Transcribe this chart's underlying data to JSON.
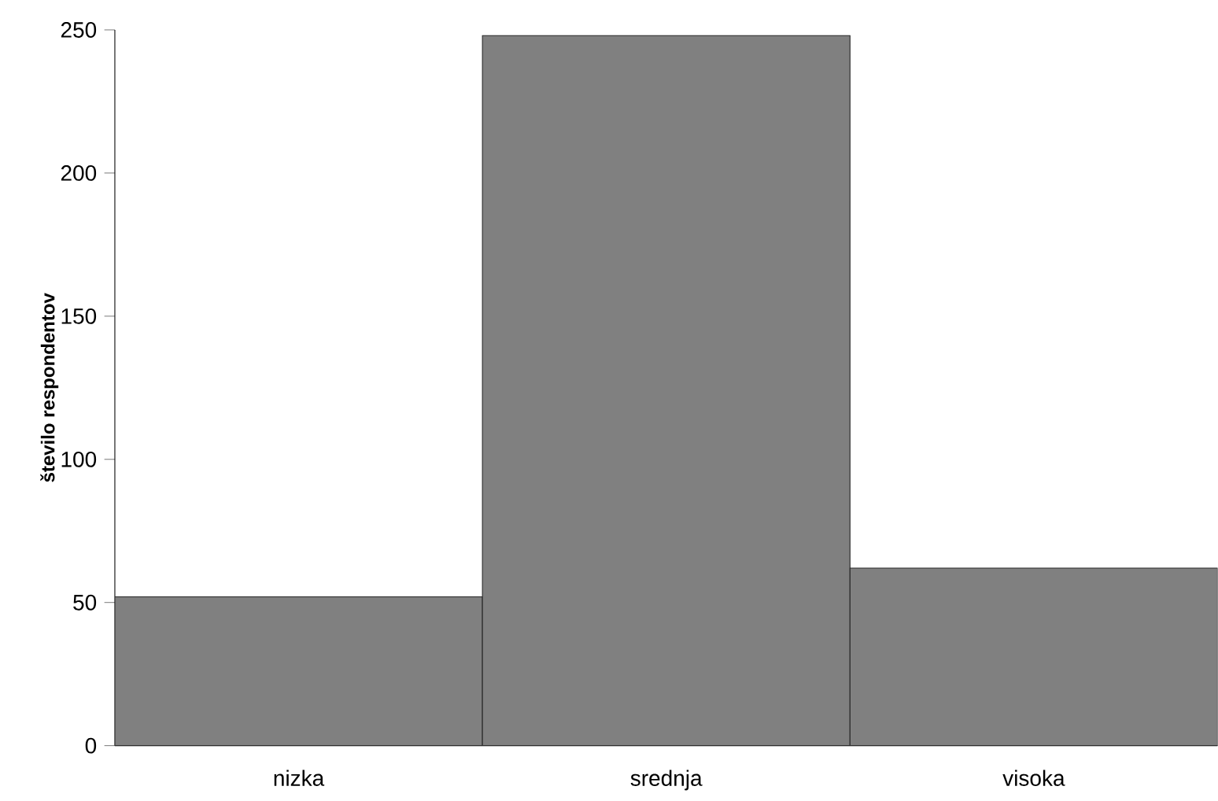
{
  "chart_data": {
    "type": "bar",
    "ylabel": "število respondentov",
    "categories": [
      "nizka",
      "srednja",
      "visoka"
    ],
    "values": [
      52,
      248,
      62
    ],
    "color": "#808080",
    "ylim": [
      0,
      250
    ],
    "yticks": [
      0,
      50,
      100,
      150,
      200,
      250
    ],
    "grid": false
  }
}
